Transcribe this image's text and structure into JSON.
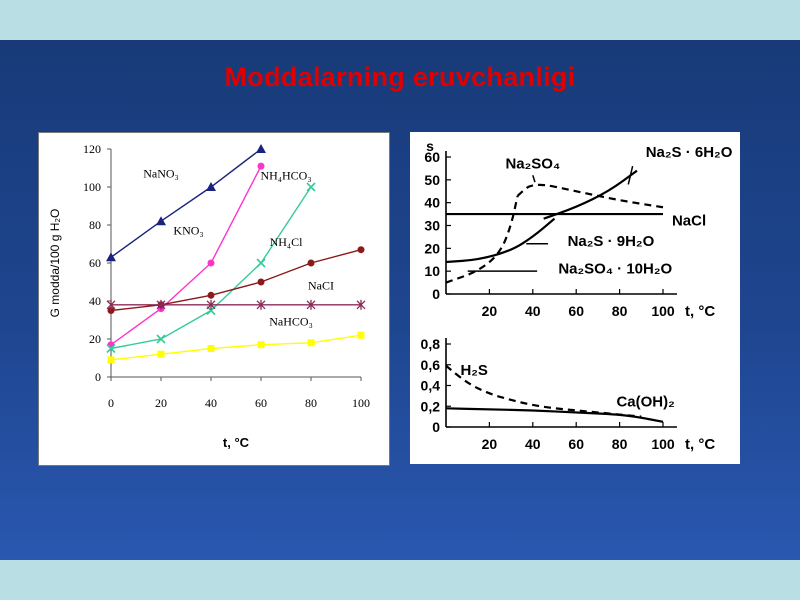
{
  "slide": {
    "title": "Moddalarning eruvchanligi"
  },
  "chart_data": [
    {
      "type": "line",
      "xlabel": "t, °C",
      "ylabel": "G modda/100 g H₂O",
      "xlim": [
        0,
        100
      ],
      "ylim": [
        0,
        120
      ],
      "x_ticks": [
        0,
        20,
        40,
        60,
        80,
        100
      ],
      "y_ticks": [
        0,
        20,
        40,
        60,
        80,
        100,
        120
      ],
      "grid": false,
      "legend": "inline labels",
      "series": [
        {
          "name": "NaNO₃",
          "color": "#1a237e",
          "marker": "triangle",
          "x": [
            0,
            20,
            40,
            60
          ],
          "y": [
            63,
            82,
            100,
            120
          ]
        },
        {
          "name": "KNO₃",
          "color": "#ff33cc",
          "marker": "circle",
          "x": [
            0,
            20,
            40,
            60
          ],
          "y": [
            17,
            36,
            60,
            111
          ]
        },
        {
          "name": "NH₄HCO₃",
          "color": "#33cc99",
          "marker": "x",
          "x": [
            0,
            20,
            40,
            60,
            80
          ],
          "y": [
            15,
            20,
            35,
            60,
            100
          ]
        },
        {
          "name": "NH₄Cl",
          "color": "#8b1a1a",
          "marker": "circle",
          "x": [
            0,
            20,
            40,
            60,
            80,
            100
          ],
          "y": [
            35,
            38,
            43,
            50,
            60,
            67
          ]
        },
        {
          "name": "NaCI",
          "color": "#8b2b5a",
          "marker": "asterisk",
          "x": [
            0,
            20,
            40,
            60,
            80,
            100
          ],
          "y": [
            38,
            38,
            38,
            38,
            38,
            38
          ]
        },
        {
          "name": "NaHCO₃",
          "color": "#ffff00",
          "marker": "square",
          "x": [
            0,
            20,
            40,
            60,
            80,
            100
          ],
          "y": [
            9,
            12,
            15,
            17,
            18,
            22
          ]
        }
      ]
    },
    {
      "type": "line",
      "ylabel": "s",
      "xlabel": "t, °C",
      "xlim": [
        0,
        100
      ],
      "ylim": [
        0,
        60
      ],
      "x_ticks": [
        20,
        40,
        60,
        80,
        100
      ],
      "y_ticks": [
        0,
        10,
        20,
        30,
        40,
        50,
        60
      ],
      "series": [
        {
          "name": "Na₂S · 6H₂O",
          "style": "solid",
          "x": [
            45,
            60,
            75,
            88
          ],
          "y": [
            33,
            38,
            45,
            54
          ]
        },
        {
          "name": "Na₂SO₄",
          "style": "dashed",
          "x": [
            33,
            40,
            60,
            80,
            100
          ],
          "y": [
            43,
            49,
            45,
            41,
            38
          ]
        },
        {
          "name": "NaCl",
          "style": "solid",
          "x": [
            0,
            100
          ],
          "y": [
            35,
            35
          ]
        },
        {
          "name": "Na₂S · 9H₂O",
          "style": "solid",
          "x": [
            0,
            15,
            30,
            40,
            50
          ],
          "y": [
            14,
            15,
            19,
            25,
            33
          ]
        },
        {
          "name": "Na₂SO₄ · 10H₂O",
          "style": "dashed",
          "x": [
            0,
            15,
            25,
            30,
            33
          ],
          "y": [
            5,
            10,
            18,
            30,
            43
          ]
        }
      ]
    },
    {
      "type": "line",
      "xlabel": "t, °C",
      "xlim": [
        0,
        100
      ],
      "ylim": [
        0,
        0.8
      ],
      "x_ticks": [
        20,
        40,
        60,
        80,
        100
      ],
      "y_ticks": [
        "0",
        "0,2",
        "0,4",
        "0,6",
        "0,8"
      ],
      "series": [
        {
          "name": "H₂S",
          "style": "dashed",
          "x": [
            0,
            10,
            20,
            30,
            40,
            50,
            60,
            70,
            80,
            90
          ],
          "y": [
            0.59,
            0.42,
            0.32,
            0.26,
            0.21,
            0.18,
            0.16,
            0.14,
            0.12,
            0.1
          ]
        },
        {
          "name": "Ca(OH)₂",
          "style": "solid",
          "x": [
            0,
            20,
            40,
            60,
            80,
            90,
            100
          ],
          "y": [
            0.18,
            0.17,
            0.16,
            0.14,
            0.12,
            0.09,
            0.05
          ]
        }
      ]
    }
  ]
}
